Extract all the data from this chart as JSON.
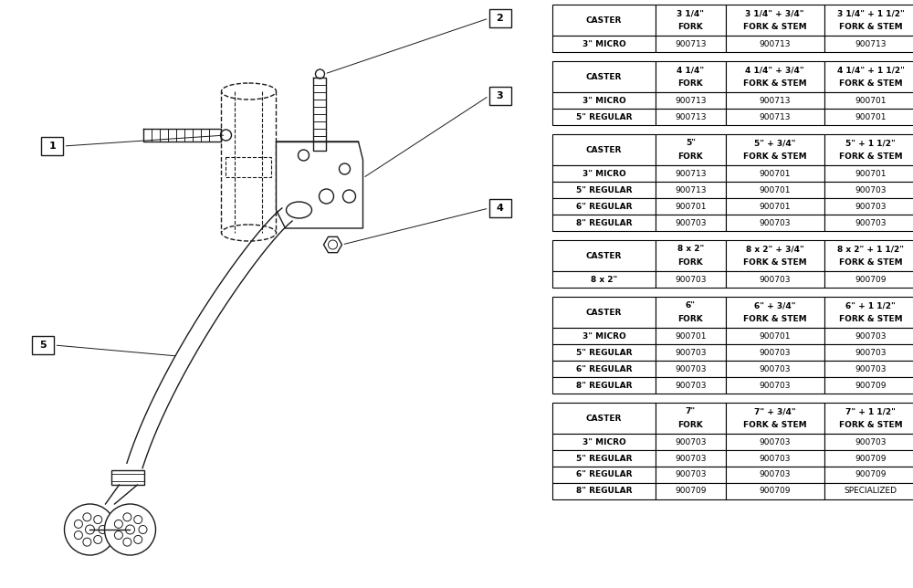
{
  "bg_color": "#ffffff",
  "tables": [
    {
      "header": [
        "CASTER",
        "3 1/4\"\nFORK",
        "3 1/4\" + 3/4\"\nFORK & STEM",
        "3 1/4\" + 1 1/2\"\nFORK & STEM"
      ],
      "rows": [
        [
          "3\" MICRO",
          "900713",
          "900713",
          "900713"
        ]
      ]
    },
    {
      "header": [
        "CASTER",
        "4 1/4\"\nFORK",
        "4 1/4\" + 3/4\"\nFORK & STEM",
        "4 1/4\" + 1 1/2\"\nFORK & STEM"
      ],
      "rows": [
        [
          "3\" MICRO",
          "900713",
          "900713",
          "900701"
        ],
        [
          "5\" REGULAR",
          "900713",
          "900713",
          "900701"
        ]
      ]
    },
    {
      "header": [
        "CASTER",
        "5\"\nFORK",
        "5\" + 3/4\"\nFORK & STEM",
        "5\" + 1 1/2\"\nFORK & STEM"
      ],
      "rows": [
        [
          "3\" MICRO",
          "900713",
          "900701",
          "900701"
        ],
        [
          "5\" REGULAR",
          "900713",
          "900701",
          "900703"
        ],
        [
          "6\" REGULAR",
          "900701",
          "900701",
          "900703"
        ],
        [
          "8\" REGULAR",
          "900703",
          "900703",
          "900703"
        ]
      ]
    },
    {
      "header": [
        "CASTER",
        "8 x 2\"\nFORK",
        "8 x 2\" + 3/4\"\nFORK & STEM",
        "8 x 2\" + 1 1/2\"\nFORK & STEM"
      ],
      "rows": [
        [
          "8 x 2\"",
          "900703",
          "900703",
          "900709"
        ]
      ]
    },
    {
      "header": [
        "CASTER",
        "6\"\nFORK",
        "6\" + 3/4\"\nFORK & STEM",
        "6\" + 1 1/2\"\nFORK & STEM"
      ],
      "rows": [
        [
          "3\" MICRO",
          "900701",
          "900701",
          "900703"
        ],
        [
          "5\" REGULAR",
          "900703",
          "900703",
          "900703"
        ],
        [
          "6\" REGULAR",
          "900703",
          "900703",
          "900703"
        ],
        [
          "8\" REGULAR",
          "900703",
          "900703",
          "900709"
        ]
      ]
    },
    {
      "header": [
        "CASTER",
        "7\"\nFORK",
        "7\" + 3/4\"\nFORK & STEM",
        "7\" + 1 1/2\"\nFORK & STEM"
      ],
      "rows": [
        [
          "3\" MICRO",
          "900703",
          "900703",
          "900703"
        ],
        [
          "5\" REGULAR",
          "900703",
          "900703",
          "900709"
        ],
        [
          "6\" REGULAR",
          "900703",
          "900703",
          "900709"
        ],
        [
          "8\" REGULAR",
          "900709",
          "900709",
          "SPECIALIZED"
        ]
      ]
    }
  ]
}
